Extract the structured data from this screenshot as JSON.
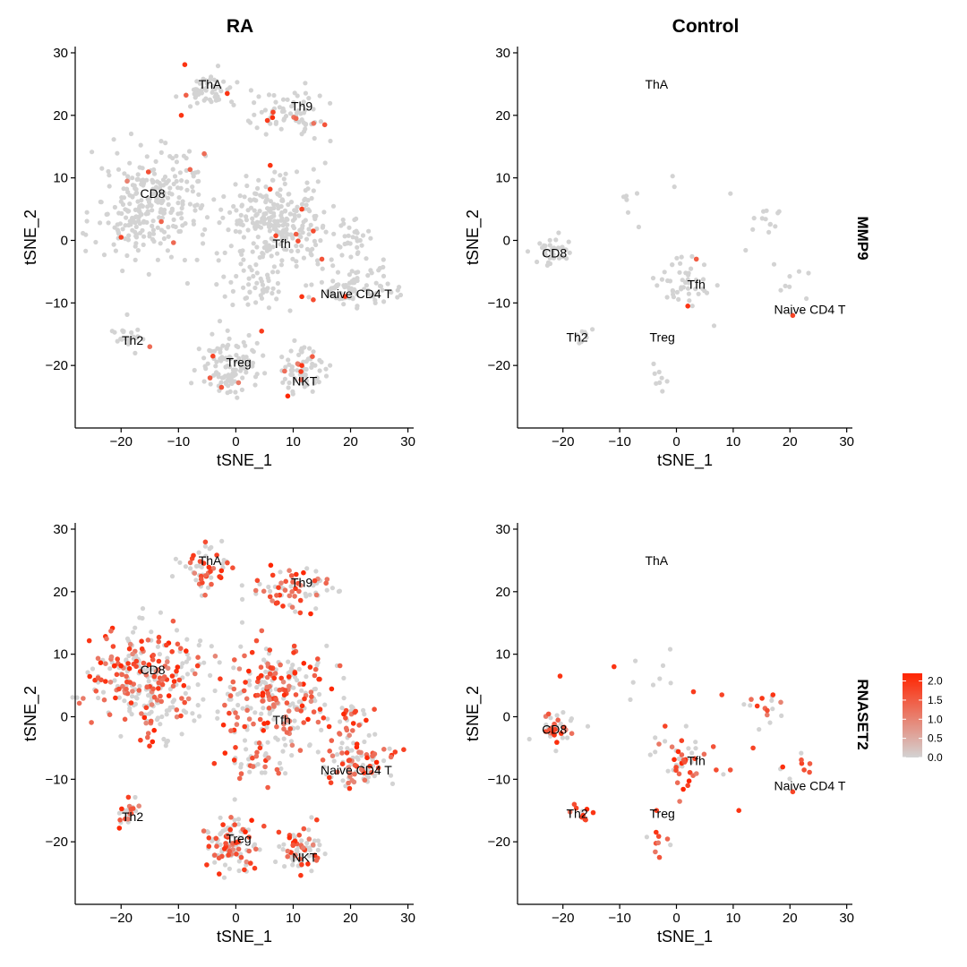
{
  "figure": {
    "column_titles": [
      "RA",
      "Control"
    ],
    "row_labels": [
      "MMP9",
      "RNASET2"
    ],
    "legend": {
      "ticks": [
        "2.0",
        "1.5",
        "1.0",
        "0.5",
        "0.0"
      ],
      "low_color": "#d3d3d3",
      "high_color": "#ff2400"
    }
  },
  "chart_data": [
    {
      "type": "scatter",
      "condition": "RA",
      "gene": "MMP9",
      "xlabel": "tSNE_1",
      "ylabel": "tSNE_2",
      "xlim": [
        -28,
        31
      ],
      "ylim": [
        -30,
        31
      ],
      "xticks": [
        "-20",
        "-10",
        "0",
        "10",
        "20",
        "30"
      ],
      "yticks": [
        "30",
        "20",
        "10",
        "0",
        "-10",
        "-20"
      ],
      "cluster_labels": [
        {
          "text": "ThA",
          "x": -4.5,
          "y": 25
        },
        {
          "text": "Th9",
          "x": 11.5,
          "y": 21.5
        },
        {
          "text": "CD8",
          "x": -14.5,
          "y": 7.5
        },
        {
          "text": "Tfh",
          "x": 8,
          "y": -0.5
        },
        {
          "text": "Naive CD4 T",
          "x": 21,
          "y": -8.5
        },
        {
          "text": "Th2",
          "x": -18,
          "y": -16
        },
        {
          "text": "Treg",
          "x": 0.5,
          "y": -19.5
        },
        {
          "text": "NKT",
          "x": 12,
          "y": -22.5
        }
      ],
      "clusters": [
        {
          "x": -5,
          "y": 24,
          "rx": 4,
          "ry": 3,
          "n": 55
        },
        {
          "x": 9.5,
          "y": 20.5,
          "rx": 6,
          "ry": 3.5,
          "n": 70
        },
        {
          "x": -15,
          "y": 6,
          "rx": 9,
          "ry": 8,
          "n": 280
        },
        {
          "x": 7,
          "y": 3,
          "rx": 8,
          "ry": 7,
          "n": 260
        },
        {
          "x": 21,
          "y": -7.5,
          "rx": 6,
          "ry": 3,
          "n": 90
        },
        {
          "x": 20,
          "y": 0,
          "rx": 3,
          "ry": 3,
          "n": 30
        },
        {
          "x": -18.5,
          "y": -15.5,
          "rx": 2,
          "ry": 2,
          "n": 22
        },
        {
          "x": -1,
          "y": -20,
          "rx": 4.5,
          "ry": 4.5,
          "n": 110
        },
        {
          "x": 11.5,
          "y": -21,
          "rx": 3,
          "ry": 3,
          "n": 70
        },
        {
          "x": 3,
          "y": -8,
          "rx": 5,
          "ry": 3,
          "n": 40
        }
      ],
      "expressed_fraction": 0.02,
      "expressed_points": [
        {
          "x": -9.5,
          "y": 20,
          "v": 2.0
        },
        {
          "x": -1.5,
          "y": 23.5,
          "v": 2.0
        },
        {
          "x": 6.5,
          "y": 20.5,
          "v": 1.8
        },
        {
          "x": 10.5,
          "y": 19.5,
          "v": 1.4
        },
        {
          "x": 15.5,
          "y": 18.5,
          "v": 1.6
        },
        {
          "x": 6,
          "y": 12,
          "v": 2.0
        },
        {
          "x": -20,
          "y": 0.5,
          "v": 1.8
        },
        {
          "x": -13,
          "y": 3,
          "v": 1.4
        },
        {
          "x": 11.5,
          "y": 5,
          "v": 1.8
        },
        {
          "x": 13.5,
          "y": 1.5,
          "v": 1.7
        },
        {
          "x": 10.5,
          "y": 1,
          "v": 1.5
        },
        {
          "x": 15,
          "y": -3,
          "v": 1.6
        },
        {
          "x": 11.5,
          "y": -9,
          "v": 2.0
        },
        {
          "x": 13.5,
          "y": -9.5,
          "v": 1.7
        },
        {
          "x": 4.5,
          "y": -14.5,
          "v": 1.9
        },
        {
          "x": -4,
          "y": -18.5,
          "v": 1.8
        },
        {
          "x": -4.5,
          "y": -22,
          "v": 1.5
        },
        {
          "x": -2.5,
          "y": -23.5,
          "v": 1.6
        },
        {
          "x": 11.5,
          "y": -20,
          "v": 2.0
        },
        {
          "x": -15,
          "y": -17,
          "v": 1.3
        }
      ]
    },
    {
      "type": "scatter",
      "condition": "Control",
      "gene": "MMP9",
      "xlabel": "tSNE_1",
      "ylabel": "tSNE_2",
      "xlim": [
        -28,
        31
      ],
      "ylim": [
        -30,
        31
      ],
      "xticks": [
        "-20",
        "-10",
        "0",
        "10",
        "20",
        "30"
      ],
      "yticks": [
        "30",
        "20",
        "10",
        "0",
        "-10",
        "-20"
      ],
      "cluster_labels": [
        {
          "text": "ThA",
          "x": -3.5,
          "y": 25
        },
        {
          "text": "CD8",
          "x": -21.5,
          "y": -2
        },
        {
          "text": "Tfh",
          "x": 3.5,
          "y": -7
        },
        {
          "text": "Naive CD4 T",
          "x": 23.5,
          "y": -11
        },
        {
          "text": "Th2",
          "x": -17.5,
          "y": -15.5
        },
        {
          "text": "Treg",
          "x": -2.5,
          "y": -15.5
        }
      ],
      "clusters": [
        {
          "x": -21.5,
          "y": -2,
          "rx": 3,
          "ry": 2.5,
          "n": 35
        },
        {
          "x": 1,
          "y": -7,
          "rx": 4,
          "ry": 4,
          "n": 45
        },
        {
          "x": 15.5,
          "y": 2,
          "rx": 4,
          "ry": 4,
          "n": 14
        },
        {
          "x": 20,
          "y": -8,
          "rx": 4,
          "ry": 3,
          "n": 8
        },
        {
          "x": -17,
          "y": -15.5,
          "rx": 2,
          "ry": 1.5,
          "n": 9
        },
        {
          "x": -3,
          "y": -20,
          "rx": 2,
          "ry": 3,
          "n": 8
        },
        {
          "x": -5,
          "y": 7,
          "rx": 7,
          "ry": 4,
          "n": 8
        }
      ],
      "expressed_fraction": 0.0,
      "expressed_points": [
        {
          "x": 3.5,
          "y": -3,
          "v": 1.5
        },
        {
          "x": 2,
          "y": -10.5,
          "v": 2.0
        },
        {
          "x": 20.5,
          "y": -12,
          "v": 1.8
        }
      ]
    },
    {
      "type": "scatter",
      "condition": "RA",
      "gene": "RNASET2",
      "xlabel": "tSNE_1",
      "ylabel": "tSNE_2",
      "xlim": [
        -28,
        31
      ],
      "ylim": [
        -30,
        31
      ],
      "xticks": [
        "-20",
        "-10",
        "0",
        "10",
        "20",
        "30"
      ],
      "yticks": [
        "30",
        "20",
        "10",
        "0",
        "-10",
        "-20"
      ],
      "cluster_labels": [
        {
          "text": "ThA",
          "x": -4.5,
          "y": 25
        },
        {
          "text": "Th9",
          "x": 11.5,
          "y": 21.5
        },
        {
          "text": "CD8",
          "x": -14.5,
          "y": 7.5
        },
        {
          "text": "Tfh",
          "x": 8,
          "y": -0.5
        },
        {
          "text": "Naive CD4 T",
          "x": 21,
          "y": -8.5
        },
        {
          "text": "Th2",
          "x": -18,
          "y": -16
        },
        {
          "text": "Treg",
          "x": 0.5,
          "y": -19.5
        },
        {
          "text": "NKT",
          "x": 12,
          "y": -22.5
        }
      ],
      "clusters": [
        {
          "x": -5,
          "y": 24,
          "rx": 4,
          "ry": 3,
          "n": 55
        },
        {
          "x": 9.5,
          "y": 20.5,
          "rx": 6,
          "ry": 3.5,
          "n": 70
        },
        {
          "x": -15,
          "y": 6,
          "rx": 9,
          "ry": 8,
          "n": 280
        },
        {
          "x": 7,
          "y": 3,
          "rx": 8,
          "ry": 7,
          "n": 260
        },
        {
          "x": 21,
          "y": -7.5,
          "rx": 6,
          "ry": 3,
          "n": 90
        },
        {
          "x": 20,
          "y": 0,
          "rx": 3,
          "ry": 3,
          "n": 30
        },
        {
          "x": -18.5,
          "y": -15.5,
          "rx": 2,
          "ry": 2,
          "n": 22
        },
        {
          "x": -1,
          "y": -20,
          "rx": 4.5,
          "ry": 4.5,
          "n": 110
        },
        {
          "x": 11.5,
          "y": -21,
          "rx": 3,
          "ry": 3,
          "n": 70
        },
        {
          "x": 3,
          "y": -8,
          "rx": 5,
          "ry": 3,
          "n": 40
        }
      ],
      "expressed_fraction": 0.45,
      "expressed_points": []
    },
    {
      "type": "scatter",
      "condition": "Control",
      "gene": "RNASET2",
      "xlabel": "tSNE_1",
      "ylabel": "tSNE_2",
      "xlim": [
        -28,
        31
      ],
      "ylim": [
        -30,
        31
      ],
      "xticks": [
        "-20",
        "-10",
        "0",
        "10",
        "20",
        "30"
      ],
      "yticks": [
        "30",
        "20",
        "10",
        "0",
        "-10",
        "-20"
      ],
      "cluster_labels": [
        {
          "text": "ThA",
          "x": -3.5,
          "y": 25
        },
        {
          "text": "CD8",
          "x": -21.5,
          "y": -2
        },
        {
          "text": "Tfh",
          "x": 3.5,
          "y": -7
        },
        {
          "text": "Naive CD4 T",
          "x": 23.5,
          "y": -11
        },
        {
          "text": "Th2",
          "x": -17.5,
          "y": -15.5
        },
        {
          "text": "Treg",
          "x": -2.5,
          "y": -15.5
        }
      ],
      "clusters": [
        {
          "x": -21.5,
          "y": -2,
          "rx": 3,
          "ry": 2.5,
          "n": 35
        },
        {
          "x": 1,
          "y": -7,
          "rx": 4,
          "ry": 4,
          "n": 45
        },
        {
          "x": 15.5,
          "y": 2,
          "rx": 4,
          "ry": 4,
          "n": 14
        },
        {
          "x": 20,
          "y": -8,
          "rx": 4,
          "ry": 3,
          "n": 8
        },
        {
          "x": -17,
          "y": -15.5,
          "rx": 2,
          "ry": 1.5,
          "n": 9
        },
        {
          "x": -3,
          "y": -20,
          "rx": 2,
          "ry": 3,
          "n": 8
        },
        {
          "x": -5,
          "y": 7,
          "rx": 7,
          "ry": 4,
          "n": 8
        }
      ],
      "expressed_fraction": 0.5,
      "expressed_points": [
        {
          "x": -20.5,
          "y": 6.5,
          "v": 2.0
        },
        {
          "x": -11,
          "y": 8,
          "v": 2.0
        },
        {
          "x": 3,
          "y": 4,
          "v": 1.9
        },
        {
          "x": 8,
          "y": 3.5,
          "v": 1.8
        },
        {
          "x": 17,
          "y": 3.5,
          "v": 2.0
        },
        {
          "x": 16,
          "y": 1,
          "v": 1.7
        },
        {
          "x": 13.5,
          "y": -5,
          "v": 1.8
        },
        {
          "x": 9.5,
          "y": -8.5,
          "v": 1.6
        },
        {
          "x": 11,
          "y": -15,
          "v": 2.0
        },
        {
          "x": 7,
          "y": -8.5,
          "v": 1.7
        },
        {
          "x": 2,
          "y": -11,
          "v": 1.8
        },
        {
          "x": -2,
          "y": -1.5,
          "v": 1.8
        },
        {
          "x": -3.5,
          "y": -15,
          "v": 1.9
        },
        {
          "x": -18,
          "y": -14,
          "v": 1.7
        },
        {
          "x": -16,
          "y": -16.5,
          "v": 1.8
        },
        {
          "x": -3,
          "y": -22.5,
          "v": 1.6
        },
        {
          "x": 23.5,
          "y": -7.5,
          "v": 1.5
        },
        {
          "x": 20.5,
          "y": -12,
          "v": 1.8
        }
      ]
    }
  ]
}
